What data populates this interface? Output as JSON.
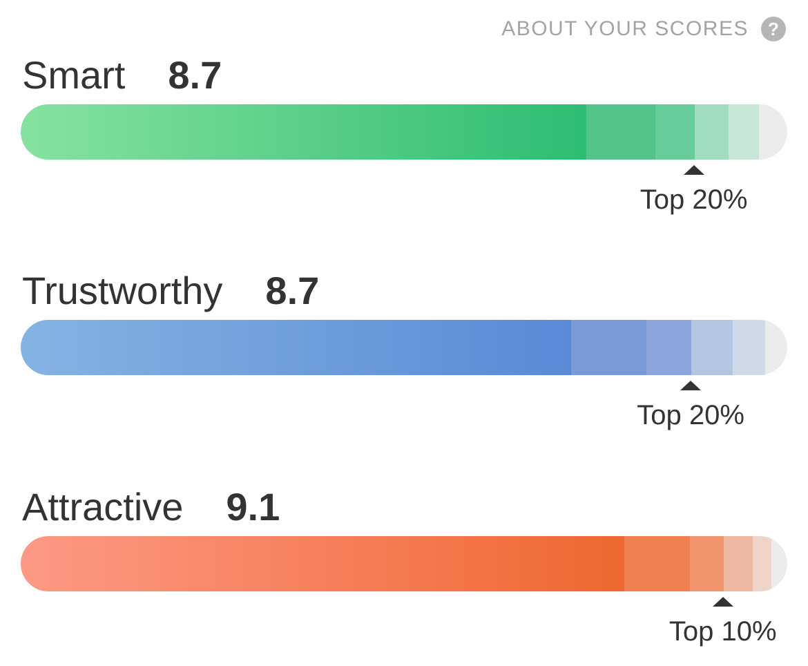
{
  "about": {
    "label": "ABOUT YOUR SCORES",
    "help_glyph": "?"
  },
  "scores": [
    {
      "label": "Smart",
      "value": "8.7",
      "rank": "Top 20%",
      "marker_fraction": 0.878,
      "gradient_start": "#86e29f",
      "gradient_end": "#2ebc73",
      "band_ends": [
        0.738,
        0.828,
        0.879,
        0.923,
        0.963
      ],
      "band_colors": [
        "gradient",
        "#52c48a",
        "#66cc99",
        "#a2dcc0",
        "#c8e6d6"
      ]
    },
    {
      "label": "Trustworthy",
      "value": "8.7",
      "rank": "Top 20%",
      "marker_fraction": 0.874,
      "gradient_start": "#84b3e3",
      "gradient_end": "#5a89d6",
      "band_ends": [
        0.718,
        0.816,
        0.875,
        0.929,
        0.971
      ],
      "band_colors": [
        "gradient",
        "#7a9bd8",
        "#8aa6dc",
        "#b4c4e3",
        "#d0d9e7"
      ]
    },
    {
      "label": "Attractive",
      "value": "9.1",
      "rank": "Top 10%",
      "marker_fraction": 0.916,
      "gradient_start": "#fd9985",
      "gradient_end": "#ee6730",
      "band_ends": [
        0.787,
        0.873,
        0.917,
        0.955,
        0.979
      ],
      "band_colors": [
        "gradient",
        "#ef8150",
        "#ef946b",
        "#eeb9a3",
        "#efd4c9"
      ]
    }
  ]
}
